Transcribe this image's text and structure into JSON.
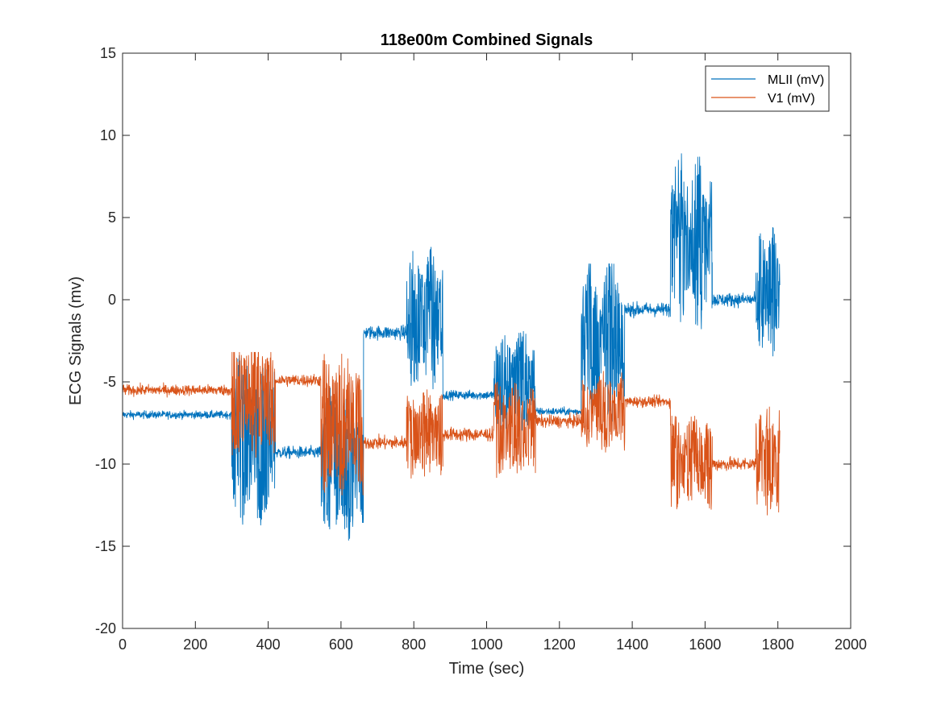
{
  "chart_data": {
    "type": "line",
    "title": "118e00m Combined Signals",
    "xlabel": "Time (sec)",
    "ylabel": "ECG Signals (mv)",
    "xlim": [
      0,
      2000
    ],
    "ylim": [
      -20,
      15
    ],
    "xticks": [
      0,
      200,
      400,
      600,
      800,
      1000,
      1200,
      1400,
      1600,
      1800,
      2000
    ],
    "yticks": [
      -20,
      -15,
      -10,
      -5,
      0,
      5,
      10,
      15
    ],
    "xtick_labels": [
      "0",
      "200",
      "400",
      "600",
      "800",
      "1000",
      "1200",
      "1400",
      "1600",
      "1800",
      "2000"
    ],
    "ytick_labels": [
      "-20",
      "-15",
      "-10",
      "-5",
      "0",
      "5",
      "10",
      "15"
    ],
    "grid": false,
    "legend_position": "top-right",
    "duration_sec": 1806,
    "series": [
      {
        "name": "MLII (mV)",
        "color": "#0072BD",
        "baseline_segments": [
          {
            "start": 0,
            "end": 300,
            "level": -7.0,
            "noise": 0.5,
            "bursty": false
          },
          {
            "start": 300,
            "end": 420,
            "level": -8.5,
            "noise": 5.5,
            "bursty": true
          },
          {
            "start": 420,
            "end": 545,
            "level": -9.3,
            "noise": 0.8,
            "bursty": false
          },
          {
            "start": 545,
            "end": 662,
            "level": -10.0,
            "noise": 4.8,
            "bursty": true
          },
          {
            "start": 662,
            "end": 780,
            "level": -2.0,
            "noise": 0.9,
            "bursty": false
          },
          {
            "start": 780,
            "end": 880,
            "level": -1.2,
            "noise": 4.5,
            "bursty": true
          },
          {
            "start": 880,
            "end": 1020,
            "level": -5.8,
            "noise": 0.6,
            "bursty": false
          },
          {
            "start": 1020,
            "end": 1135,
            "level": -5.0,
            "noise": 3.2,
            "bursty": true
          },
          {
            "start": 1135,
            "end": 1260,
            "level": -6.8,
            "noise": 0.5,
            "bursty": false
          },
          {
            "start": 1260,
            "end": 1380,
            "level": -2.5,
            "noise": 5.0,
            "bursty": true
          },
          {
            "start": 1380,
            "end": 1505,
            "level": -0.6,
            "noise": 0.9,
            "bursty": false
          },
          {
            "start": 1505,
            "end": 1620,
            "level": 3.5,
            "noise": 5.5,
            "bursty": true
          },
          {
            "start": 1620,
            "end": 1740,
            "level": 0.0,
            "noise": 0.9,
            "bursty": false
          },
          {
            "start": 1740,
            "end": 1806,
            "level": 0.5,
            "noise": 4.0,
            "bursty": true
          }
        ],
        "approx_min": -16,
        "approx_max": 12.2
      },
      {
        "name": "V1 (mV)",
        "color": "#D95319",
        "baseline_segments": [
          {
            "start": 0,
            "end": 300,
            "level": -5.5,
            "noise": 0.7,
            "bursty": false
          },
          {
            "start": 300,
            "end": 420,
            "level": -5.8,
            "noise": 4.0,
            "bursty": true
          },
          {
            "start": 420,
            "end": 545,
            "level": -4.9,
            "noise": 0.8,
            "bursty": false
          },
          {
            "start": 545,
            "end": 662,
            "level": -7.5,
            "noise": 4.5,
            "bursty": true
          },
          {
            "start": 662,
            "end": 780,
            "level": -8.7,
            "noise": 0.9,
            "bursty": false
          },
          {
            "start": 780,
            "end": 880,
            "level": -8.2,
            "noise": 2.8,
            "bursty": true
          },
          {
            "start": 880,
            "end": 1020,
            "level": -8.2,
            "noise": 0.9,
            "bursty": false
          },
          {
            "start": 1020,
            "end": 1135,
            "level": -8.0,
            "noise": 3.0,
            "bursty": true
          },
          {
            "start": 1135,
            "end": 1260,
            "level": -7.4,
            "noise": 0.8,
            "bursty": false
          },
          {
            "start": 1260,
            "end": 1380,
            "level": -6.8,
            "noise": 2.5,
            "bursty": true
          },
          {
            "start": 1380,
            "end": 1505,
            "level": -6.2,
            "noise": 0.7,
            "bursty": false
          },
          {
            "start": 1505,
            "end": 1620,
            "level": -10.0,
            "noise": 3.0,
            "bursty": true
          },
          {
            "start": 1620,
            "end": 1740,
            "level": -10.0,
            "noise": 0.9,
            "bursty": false
          },
          {
            "start": 1740,
            "end": 1806,
            "level": -9.8,
            "noise": 3.5,
            "bursty": true
          }
        ],
        "approx_min": -16.6,
        "approx_max": -3.2
      }
    ]
  }
}
